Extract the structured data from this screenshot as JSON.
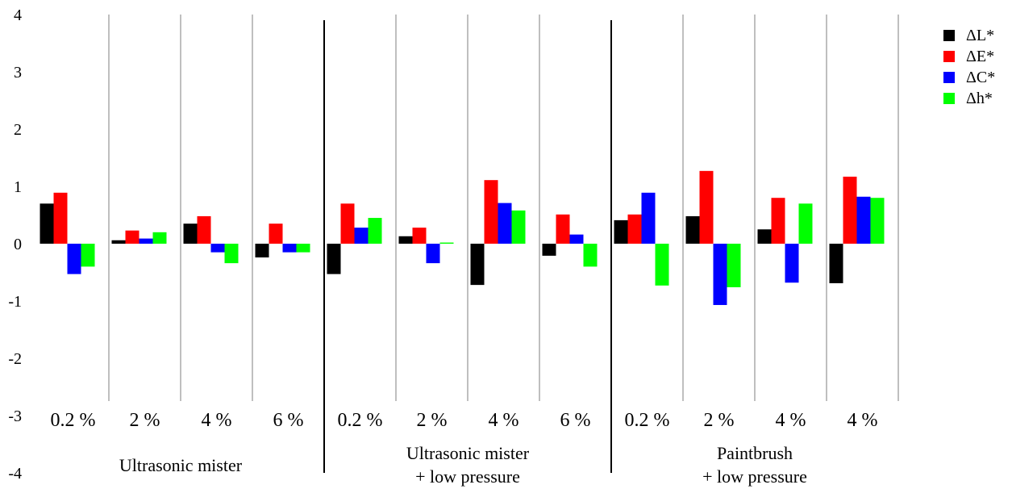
{
  "chart_data": {
    "type": "bar",
    "ylim": [
      -4,
      4
    ],
    "yticks": [
      4,
      3,
      2,
      1,
      0,
      -1,
      -2,
      -3,
      -4
    ],
    "grid": false,
    "legend_position": "top-right",
    "categories": [
      "0.2 %",
      "2 %",
      "4 %",
      "6 %",
      "0.2 %",
      "2 %",
      "4 %",
      "6 %",
      "0.2 %",
      "2 %",
      "4 %",
      "4 %"
    ],
    "groups": [
      {
        "label_line1": "Ultrasonic mister",
        "label_line2": ""
      },
      {
        "label_line1": "Ultrasonic mister",
        "label_line2": "+ low pressure"
      },
      {
        "label_line1": "Paintbrush",
        "label_line2": "+ low pressure"
      }
    ],
    "series": [
      {
        "name": "ΔL*",
        "color": "#000000",
        "values": [
          0.7,
          0.06,
          0.35,
          -0.24,
          -0.53,
          0.13,
          -0.72,
          -0.21,
          0.41,
          0.48,
          0.25,
          -0.69
        ]
      },
      {
        "name": "ΔE*",
        "color": "#ff0000",
        "values": [
          0.89,
          0.23,
          0.48,
          0.35,
          0.7,
          0.28,
          1.11,
          0.51,
          0.51,
          1.27,
          0.8,
          1.17
        ]
      },
      {
        "name": "ΔC*",
        "color": "#0000ff",
        "values": [
          -0.53,
          0.09,
          -0.15,
          -0.15,
          0.28,
          -0.34,
          0.71,
          0.16,
          0.89,
          -1.07,
          -0.68,
          0.82
        ]
      },
      {
        "name": "Δh*",
        "color": "#00ff00",
        "values": [
          -0.4,
          0.2,
          -0.34,
          -0.15,
          0.45,
          0.02,
          0.58,
          -0.4,
          -0.73,
          -0.76,
          0.7,
          0.8
        ]
      }
    ]
  }
}
